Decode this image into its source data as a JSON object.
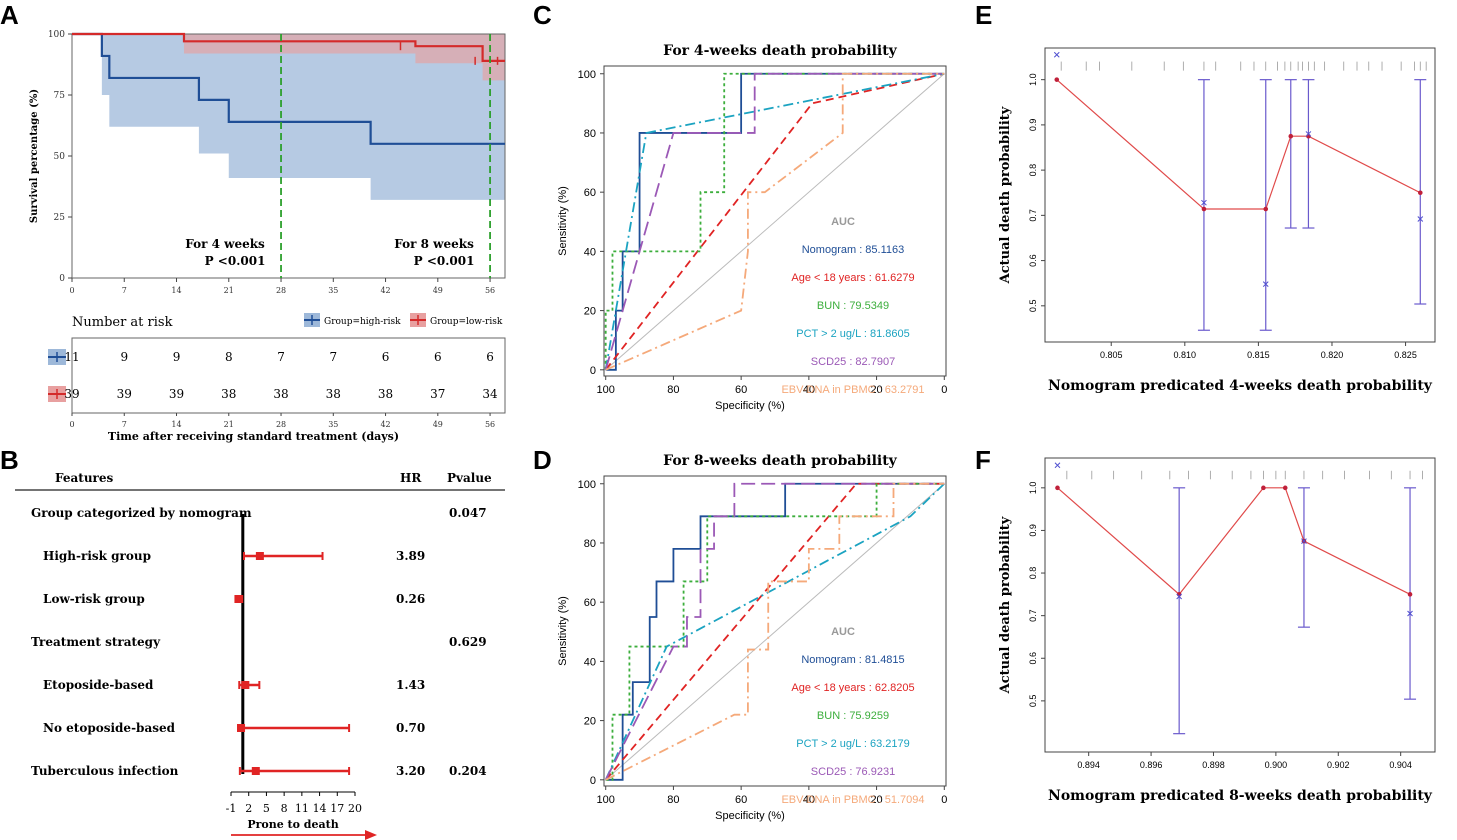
{
  "panel_letters": [
    "A",
    "B",
    "C",
    "D",
    "E",
    "F"
  ],
  "chart_data": [
    {
      "id": "A",
      "type": "line",
      "subtype": "kaplan-meier",
      "ylabel": "Survival percentage (%)",
      "xlabel": "Time after receiving standard treatment (days)",
      "xlim": [
        0,
        58
      ],
      "ylim": [
        0,
        100
      ],
      "x_ticks": [
        0,
        7,
        14,
        21,
        28,
        35,
        42,
        49,
        56
      ],
      "y_ticks": [
        0,
        25,
        50,
        75,
        100
      ],
      "series": [
        {
          "name": "Group=high-risk",
          "color": "#1f4e96",
          "band_color": "#9db8d9",
          "x": [
            0,
            4,
            5,
            17,
            21,
            40,
            58
          ],
          "y": [
            100,
            91,
            82,
            73,
            64,
            55,
            55
          ],
          "upper": [
            100,
            100,
            100,
            100,
            100,
            100,
            100
          ],
          "lower": [
            100,
            75,
            62,
            51,
            41,
            32,
            32
          ]
        },
        {
          "name": "Group=low-risk",
          "color": "#d42a2a",
          "band_color": "#e8a0a0",
          "x": [
            0,
            15,
            46,
            55,
            58
          ],
          "y": [
            100,
            97,
            95,
            89,
            89
          ],
          "upper": [
            100,
            100,
            100,
            100,
            100
          ],
          "lower": [
            100,
            92,
            88,
            81,
            81
          ]
        }
      ],
      "vlines": [
        28,
        56
      ],
      "annotations": [
        {
          "label": "For 4 weeks",
          "p": "P <0.001"
        },
        {
          "label": "For 8 weeks",
          "p": "P <0.001"
        }
      ],
      "risk_table": {
        "title": "Number at risk",
        "times": [
          0,
          7,
          14,
          21,
          28,
          35,
          42,
          49,
          56
        ],
        "rows": [
          {
            "group": "high-risk",
            "values": [
              11,
              9,
              9,
              8,
              7,
              7,
              6,
              6,
              6
            ]
          },
          {
            "group": "low-risk",
            "values": [
              39,
              39,
              39,
              38,
              38,
              38,
              38,
              37,
              34
            ]
          }
        ]
      }
    },
    {
      "id": "B",
      "type": "forest",
      "headers": {
        "features": "Features",
        "hr": "HR",
        "p": "Pvalue"
      },
      "xlim": [
        -1,
        20
      ],
      "x_ticks": [
        -1,
        2,
        5,
        8,
        11,
        14,
        17,
        20
      ],
      "x_tick_labels": [
        "-1",
        "2",
        "5",
        "8",
        "11",
        "14",
        "17",
        "20"
      ],
      "x_tick_labels_drawn": [
        "-1",
        "2",
        "5",
        "8",
        "11",
        "14",
        "17",
        "20"
      ],
      "xlabel": "Prone to death",
      "ref_line": 1,
      "rows": [
        {
          "label": "Group categorized by nomogram",
          "type": "group",
          "hr": "",
          "p": "0.047"
        },
        {
          "label": "High-risk group",
          "type": "item",
          "hr": "3.89",
          "p": "",
          "est": 3.89,
          "lo": 1.2,
          "hi": 14.5
        },
        {
          "label": "Low-risk group",
          "type": "item",
          "hr": "0.26",
          "p": "",
          "est": 0.26,
          "lo": 0.1,
          "hi": 0.9
        },
        {
          "label": "Treatment strategy",
          "type": "group",
          "hr": "",
          "p": "0.629"
        },
        {
          "label": "Etoposide-based",
          "type": "item",
          "hr": "1.43",
          "p": "",
          "est": 1.43,
          "lo": 0.4,
          "hi": 3.8
        },
        {
          "label": "No etoposide-based",
          "type": "item",
          "hr": "0.70",
          "p": "",
          "est": 0.7,
          "lo": 0.2,
          "hi": 19.0
        },
        {
          "label": "Tuberculous infection",
          "type": "group",
          "hr": "3.20",
          "p": "0.204",
          "est": 3.2,
          "lo": 0.5,
          "hi": 19.0
        }
      ]
    },
    {
      "id": "C",
      "type": "line",
      "subtype": "roc",
      "title": "For 4-weeks death probability",
      "xlabel": "Specificity (%)",
      "ylabel": "Sensitivity (%)",
      "x_ticks": [
        100,
        80,
        60,
        40,
        20,
        0
      ],
      "y_ticks": [
        0,
        20,
        40,
        60,
        80,
        100
      ],
      "auc_title": "AUC",
      "series": [
        {
          "name": "Nomogram",
          "auc": "Nomogram : 85.1163",
          "color": "#1f4e96",
          "dash": "",
          "x": [
            100,
            97,
            97,
            95,
            95,
            93,
            93,
            90,
            90,
            88,
            88,
            60,
            60,
            0
          ],
          "y": [
            0,
            0,
            20,
            20,
            40,
            40,
            40,
            40,
            80,
            80,
            80,
            80,
            100,
            100
          ]
        },
        {
          "name": "Age < 18 years",
          "auc": "Age < 18 years : 61.6279",
          "color": "#e02424",
          "dash": "8,5",
          "x": [
            100,
            39,
            0
          ],
          "y": [
            0,
            90,
            100
          ]
        },
        {
          "name": "BUN",
          "auc": "BUN : 79.5349",
          "color": "#3cae3c",
          "dash": "3,3",
          "x": [
            100,
            100,
            99,
            99,
            98,
            98,
            97,
            97,
            90,
            90,
            72,
            72,
            65,
            65,
            60,
            60,
            0
          ],
          "y": [
            0,
            20,
            20,
            20,
            20,
            40,
            40,
            40,
            40,
            40,
            40,
            60,
            60,
            100,
            100,
            100,
            100
          ]
        },
        {
          "name": "PCT > 2 ug/L",
          "auc": "PCT > 2 ug/L : 81.8605",
          "color": "#1ba3c1",
          "dash": "10,4,2,4",
          "x": [
            100,
            88,
            0
          ],
          "y": [
            0,
            80,
            100
          ]
        },
        {
          "name": "SCD25",
          "auc": "SCD25 : 82.7907",
          "color": "#9b59b6",
          "dash": "14,6",
          "x": [
            100,
            80,
            63,
            63,
            56,
            56,
            0
          ],
          "y": [
            0,
            80,
            80,
            80,
            80,
            100,
            100
          ]
        },
        {
          "name": "EBV-DNA in PBMC",
          "auc": "EBV-DNA in PBMC : 63.2791",
          "color": "#f5a97a",
          "dash": "10,4,2,4",
          "x": [
            100,
            60,
            60,
            58,
            58,
            53,
            53,
            30,
            30,
            0
          ],
          "y": [
            0,
            20,
            20,
            40,
            60,
            60,
            60,
            80,
            100,
            100
          ]
        }
      ]
    },
    {
      "id": "D",
      "type": "line",
      "subtype": "roc",
      "title": "For 8-weeks death probability",
      "xlabel": "Specificity (%)",
      "ylabel": "Sensitivity (%)",
      "x_ticks": [
        100,
        80,
        60,
        40,
        20,
        0
      ],
      "y_ticks": [
        0,
        20,
        40,
        60,
        80,
        100
      ],
      "auc_title": "AUC",
      "series": [
        {
          "name": "Nomogram",
          "auc": "Nomogram : 81.4815",
          "color": "#1f4e96",
          "dash": "",
          "x": [
            100,
            95,
            95,
            92,
            92,
            90,
            90,
            87,
            87,
            85,
            85,
            80,
            80,
            72,
            72,
            65,
            65,
            47,
            47,
            0
          ],
          "y": [
            0,
            0,
            22,
            22,
            33,
            33,
            33,
            33,
            55,
            55,
            67,
            67,
            78,
            78,
            89,
            89,
            89,
            89,
            100,
            100
          ]
        },
        {
          "name": "Age < 18 years",
          "auc": "Age < 18 years : 62.8205",
          "color": "#e02424",
          "dash": "8,5",
          "x": [
            100,
            26,
            0
          ],
          "y": [
            0,
            100,
            100
          ]
        },
        {
          "name": "BUN",
          "auc": "BUN : 75.9259",
          "color": "#3cae3c",
          "dash": "3,3",
          "x": [
            100,
            98,
            98,
            93,
            93,
            88,
            88,
            77,
            77,
            70,
            70,
            20,
            20,
            10,
            10,
            0
          ],
          "y": [
            0,
            0,
            22,
            22,
            45,
            45,
            45,
            45,
            67,
            67,
            89,
            89,
            100,
            100,
            100,
            100
          ]
        },
        {
          "name": "PCT > 2 ug/L",
          "auc": "PCT > 2 ug/L : 63.2179",
          "color": "#1ba3c1",
          "dash": "10,4,2,4",
          "x": [
            100,
            82,
            10,
            0
          ],
          "y": [
            0,
            45,
            89,
            100
          ]
        },
        {
          "name": "SCD25",
          "auc": "SCD25 : 76.9231",
          "color": "#9b59b6",
          "dash": "14,6",
          "x": [
            100,
            80,
            76,
            76,
            72,
            72,
            68,
            68,
            62,
            62,
            0
          ],
          "y": [
            0,
            45,
            45,
            55,
            55,
            78,
            78,
            89,
            89,
            100,
            100
          ]
        },
        {
          "name": "EBV-DNA in PBMC",
          "auc": "EBV-DNA in PBMC : 51.7094",
          "color": "#f5a97a",
          "dash": "10,4,2,4",
          "x": [
            100,
            62,
            58,
            58,
            52,
            52,
            40,
            40,
            31,
            31,
            15,
            15,
            0
          ],
          "y": [
            0,
            22,
            22,
            44,
            44,
            67,
            67,
            78,
            78,
            89,
            89,
            100,
            100
          ]
        }
      ]
    },
    {
      "id": "E",
      "type": "scatter",
      "subtype": "calibration",
      "xlabel": "Nomogram predicated  4-weeks death probability",
      "ylabel": "Actual death probability",
      "xlim": [
        0.8005,
        0.827
      ],
      "ylim": [
        0.42,
        1.07
      ],
      "x_ticks": [
        0.805,
        0.81,
        0.815,
        0.82,
        0.825
      ],
      "x_tick_labels": [
        "0.805",
        "0.810",
        "0.815",
        "0.820",
        "0.825"
      ],
      "y_ticks": [
        0.5,
        0.6,
        0.7,
        0.8,
        0.9,
        1.0
      ],
      "y_tick_labels": [
        "0.5",
        "0.6",
        "0.7",
        "0.8",
        "0.9",
        "1.0"
      ],
      "points": [
        {
          "x": 0.8013,
          "y": 1.0,
          "lo": null,
          "hi": null,
          "cross": 1.055
        },
        {
          "x": 0.8113,
          "y": 0.714,
          "lo": 0.446,
          "hi": 1.0,
          "cross": 0.728
        },
        {
          "x": 0.8155,
          "y": 0.714,
          "lo": 0.446,
          "hi": 1.0,
          "cross": 0.548
        },
        {
          "x": 0.8172,
          "y": 0.875,
          "lo": 0.672,
          "hi": 1.0,
          "cross": null
        },
        {
          "x": 0.8184,
          "y": 0.875,
          "lo": 0.672,
          "hi": 1.0,
          "cross": 0.88
        },
        {
          "x": 0.826,
          "y": 0.75,
          "lo": 0.504,
          "hi": 1.0,
          "cross": 0.692
        }
      ],
      "rug": [
        0.8016,
        0.8033,
        0.8042,
        0.8064,
        0.8086,
        0.8099,
        0.8113,
        0.8121,
        0.8138,
        0.8147,
        0.8155,
        0.8163,
        0.8168,
        0.8172,
        0.8177,
        0.818,
        0.8184,
        0.8188,
        0.8195,
        0.8208,
        0.8217,
        0.8225,
        0.8234,
        0.8247,
        0.8256,
        0.826,
        0.8264
      ]
    },
    {
      "id": "F",
      "type": "scatter",
      "subtype": "calibration",
      "xlabel": "Nomogram predicated  8-weeks death probability",
      "ylabel": "Actual death probability",
      "xlim": [
        0.8926,
        0.9051
      ],
      "ylim": [
        0.38,
        1.07
      ],
      "x_ticks": [
        0.894,
        0.896,
        0.898,
        0.9,
        0.902,
        0.904
      ],
      "x_tick_labels": [
        "0.894",
        "0.896",
        "0.898",
        "0.900",
        "0.902",
        "0.904"
      ],
      "y_ticks": [
        0.5,
        0.6,
        0.7,
        0.8,
        0.9,
        1.0
      ],
      "y_tick_labels": [
        "0.5",
        "0.6",
        "0.7",
        "0.8",
        "0.9",
        "1.0"
      ],
      "points": [
        {
          "x": 0.893,
          "y": 1.0,
          "lo": null,
          "hi": null,
          "cross": 1.053
        },
        {
          "x": 0.8969,
          "y": 0.75,
          "lo": 0.423,
          "hi": 1.0,
          "cross": 0.745
        },
        {
          "x": 0.8996,
          "y": 1.0,
          "lo": null,
          "hi": null,
          "cross": null
        },
        {
          "x": 0.9003,
          "y": 1.0,
          "lo": null,
          "hi": null,
          "cross": null
        },
        {
          "x": 0.9009,
          "y": 0.875,
          "lo": 0.673,
          "hi": 1.0,
          "cross": 0.875
        },
        {
          "x": 0.9043,
          "y": 0.75,
          "lo": 0.504,
          "hi": 1.0,
          "cross": 0.705
        }
      ],
      "rug": [
        0.8933,
        0.8941,
        0.8948,
        0.8957,
        0.8966,
        0.8972,
        0.8979,
        0.8986,
        0.8992,
        0.8996,
        0.9,
        0.9003,
        0.9009,
        0.9015,
        0.9022,
        0.903,
        0.9037,
        0.9043,
        0.9047
      ]
    }
  ]
}
